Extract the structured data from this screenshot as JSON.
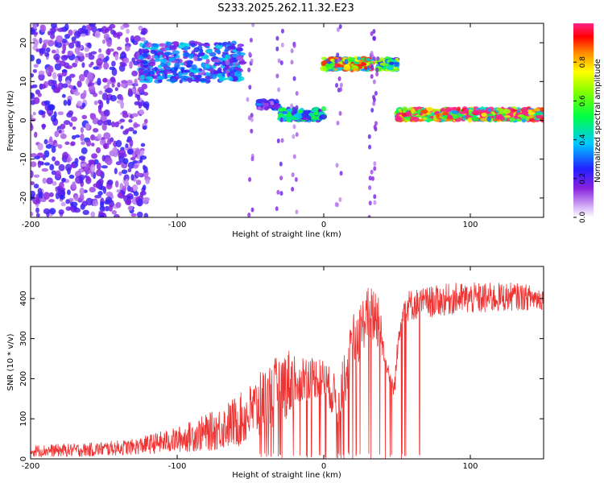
{
  "title": "S233.2025.262.11.32.E23",
  "chart_data": [
    {
      "type": "heatmap",
      "xlabel": "Height of straight line (km)",
      "ylabel": "Frequency (Hz)",
      "xlim": [
        -200,
        150
      ],
      "ylim": [
        -25,
        25
      ],
      "x_ticks": [
        -200,
        -100,
        0,
        100
      ],
      "y_ticks": [
        -20,
        -10,
        0,
        10,
        20
      ],
      "colorbar": {
        "label": "Normalized spectral amplitude",
        "range": [
          0,
          1
        ],
        "ticks": [
          0.0,
          0.2,
          0.4,
          0.6,
          0.8
        ]
      },
      "features": [
        {
          "region": "scattered noise",
          "x": [
            -200,
            -120
          ],
          "freq": [
            -25,
            25
          ],
          "amplitude": 0.2
        },
        {
          "region": "band",
          "x": [
            -125,
            -55
          ],
          "freq": [
            10,
            20
          ],
          "amplitude": 0.3
        },
        {
          "region": "band",
          "x": [
            -45,
            -30
          ],
          "freq": [
            3,
            5
          ],
          "amplitude": 0.25
        },
        {
          "region": "band",
          "x": [
            -30,
            0
          ],
          "freq": [
            0,
            3
          ],
          "amplitude": 0.45
        },
        {
          "region": "band",
          "x": [
            0,
            33
          ],
          "freq": [
            13,
            16
          ],
          "amplitude": 0.8
        },
        {
          "region": "band",
          "x": [
            37,
            50
          ],
          "freq": [
            13,
            16
          ],
          "amplitude": 0.6
        },
        {
          "region": "band",
          "x": [
            50,
            150
          ],
          "freq": [
            0,
            3
          ],
          "amplitude": 0.9
        }
      ]
    },
    {
      "type": "line",
      "xlabel": "Height of straight line (km)",
      "ylabel": "SNR (10 * v/v)",
      "xlim": [
        -200,
        150
      ],
      "ylim": [
        0,
        480
      ],
      "x_ticks": [
        -200,
        -100,
        0,
        100
      ],
      "y_ticks": [
        0,
        100,
        200,
        300,
        400
      ],
      "color": "#ee3333",
      "envelope": [
        {
          "x": -200,
          "low": 5,
          "high": 35
        },
        {
          "x": -160,
          "low": 5,
          "high": 40
        },
        {
          "x": -130,
          "low": 10,
          "high": 50
        },
        {
          "x": -100,
          "low": 15,
          "high": 80
        },
        {
          "x": -75,
          "low": 20,
          "high": 120
        },
        {
          "x": -55,
          "low": 30,
          "high": 170
        },
        {
          "x": -40,
          "low": 60,
          "high": 230
        },
        {
          "x": -25,
          "low": 100,
          "high": 280
        },
        {
          "x": -10,
          "low": 150,
          "high": 260
        },
        {
          "x": 0,
          "low": 150,
          "high": 250
        },
        {
          "x": 10,
          "low": 80,
          "high": 200
        },
        {
          "x": 20,
          "low": 200,
          "high": 360
        },
        {
          "x": 30,
          "low": 300,
          "high": 430
        },
        {
          "x": 37,
          "low": 270,
          "high": 440
        },
        {
          "x": 42,
          "low": 230,
          "high": 260
        },
        {
          "x": 48,
          "low": 140,
          "high": 200
        },
        {
          "x": 53,
          "low": 340,
          "high": 420
        },
        {
          "x": 70,
          "low": 350,
          "high": 430
        },
        {
          "x": 90,
          "low": 360,
          "high": 440
        },
        {
          "x": 110,
          "low": 360,
          "high": 440
        },
        {
          "x": 130,
          "low": 370,
          "high": 440
        },
        {
          "x": 150,
          "low": 370,
          "high": 430
        }
      ]
    }
  ]
}
